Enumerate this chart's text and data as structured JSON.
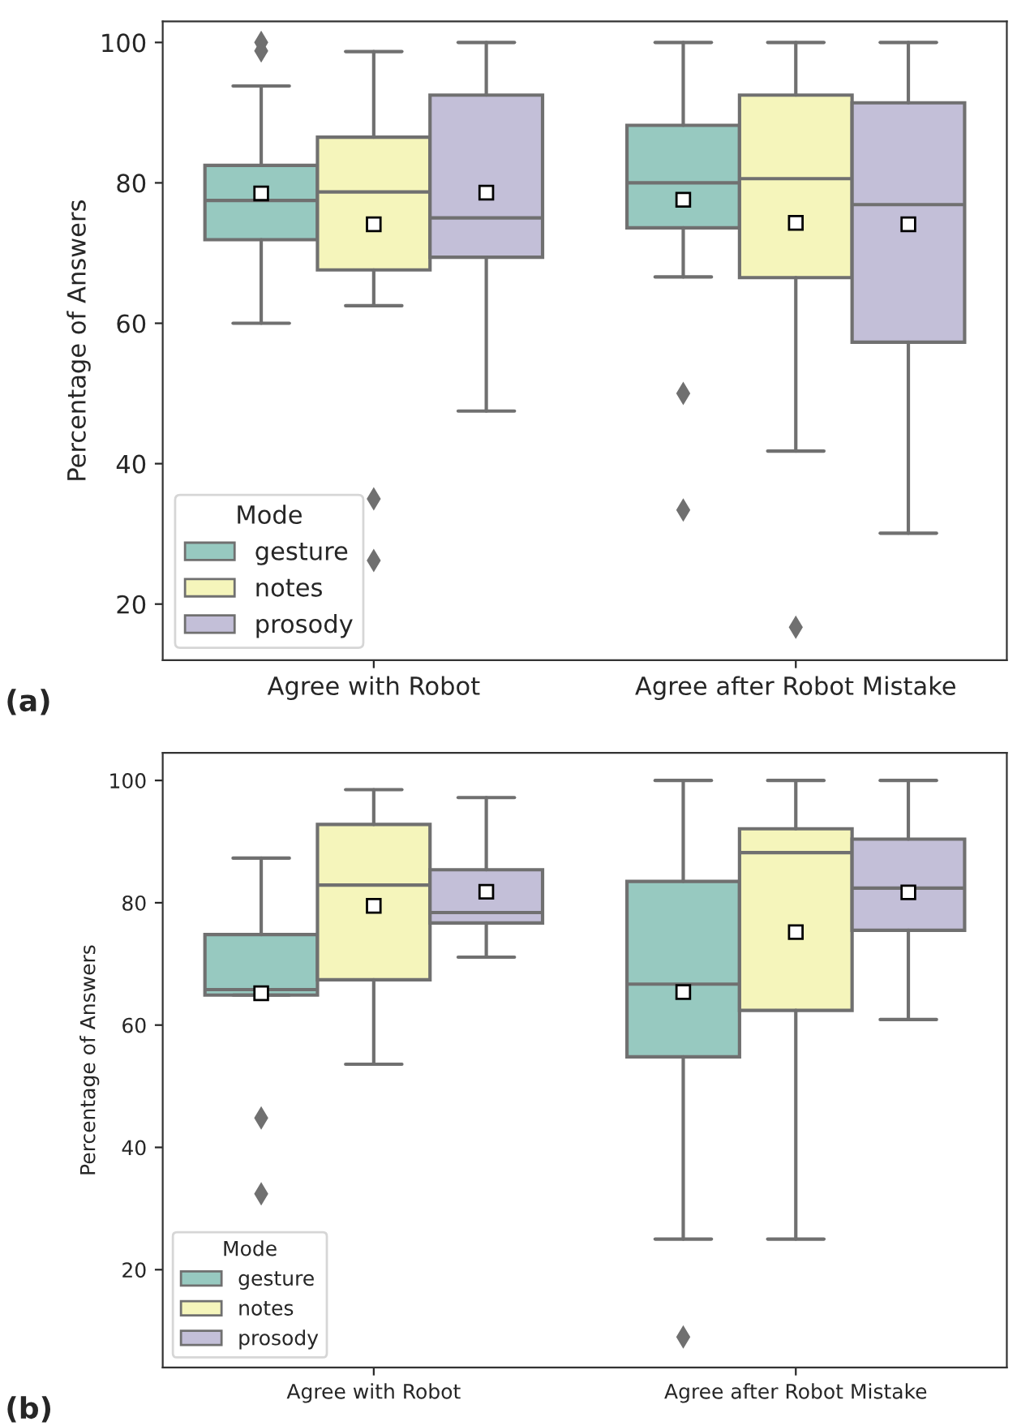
{
  "chart_data": [
    {
      "type": "box",
      "ylabel": "Percentage of Answers",
      "legend_title": "Mode",
      "legend": "bottom left",
      "grid": false,
      "annotations": [
        "(a)"
      ],
      "categories": [
        "Agree with Robot",
        "Agree after Robot Mistake"
      ],
      "ylim": [
        12,
        103
      ],
      "yticks": [
        20,
        40,
        60,
        80,
        100
      ],
      "series": [
        {
          "name": "gesture",
          "color": "#97c9c0",
          "boxes": [
            {
              "low": 60,
              "q1": 71.9,
              "median": 77.5,
              "q3": 82.5,
              "high": 93.8,
              "mean": 78.5,
              "outliers": [
                100,
                98.8
              ]
            },
            {
              "low": 66.6,
              "q1": 73.6,
              "median": 80,
              "q3": 88.2,
              "high": 100,
              "mean": 77.6,
              "outliers": [
                50,
                33.4
              ]
            }
          ]
        },
        {
          "name": "notes",
          "color": "#f5f5bb",
          "boxes": [
            {
              "low": 62.5,
              "q1": 67.6,
              "median": 78.7,
              "q3": 86.5,
              "high": 98.7,
              "mean": 74.1,
              "outliers": [
                35,
                26.2
              ]
            },
            {
              "low": 41.8,
              "q1": 66.5,
              "median": 80.6,
              "q3": 92.5,
              "high": 100,
              "mean": 74.3,
              "outliers": [
                16.7
              ]
            }
          ]
        },
        {
          "name": "prosody",
          "color": "#c3bfd8",
          "boxes": [
            {
              "low": 47.5,
              "q1": 69.4,
              "median": 75,
              "q3": 92.5,
              "high": 100,
              "mean": 78.6
            },
            {
              "low": 30.1,
              "q1": 57.3,
              "median": 76.9,
              "q3": 91.4,
              "high": 100,
              "mean": 74.1
            }
          ]
        }
      ]
    },
    {
      "type": "box",
      "ylabel": "Percentage of Answers",
      "legend_title": "Mode",
      "legend": "bottom left",
      "grid": false,
      "annotations": [
        "(b)"
      ],
      "categories": [
        "Agree with Robot",
        "Agree after Robot Mistake"
      ],
      "ylim": [
        4,
        104.5
      ],
      "yticks": [
        20,
        40,
        60,
        80,
        100
      ],
      "series": [
        {
          "name": "gesture",
          "color": "#97c9c0",
          "boxes": [
            {
              "low": 64.9,
              "q1": 64.9,
              "median": 65.8,
              "q3": 74.8,
              "high": 87.3,
              "mean": 65.2,
              "outliers": [
                44.8,
                32.4
              ]
            },
            {
              "low": 25,
              "q1": 54.8,
              "median": 66.7,
              "q3": 83.5,
              "high": 100,
              "mean": 65.4,
              "outliers": [
                9
              ]
            }
          ]
        },
        {
          "name": "notes",
          "color": "#f5f5bb",
          "boxes": [
            {
              "low": 53.6,
              "q1": 67.4,
              "median": 82.9,
              "q3": 92.8,
              "high": 98.5,
              "mean": 79.5
            },
            {
              "low": 25,
              "q1": 62.4,
              "median": 88.2,
              "q3": 92.1,
              "high": 100,
              "mean": 75.2
            }
          ]
        },
        {
          "name": "prosody",
          "color": "#c3bfd8",
          "boxes": [
            {
              "low": 71.1,
              "q1": 76.7,
              "median": 78.4,
              "q3": 85.4,
              "high": 97.2,
              "mean": 81.8
            },
            {
              "low": 60.9,
              "q1": 75.5,
              "median": 82.4,
              "q3": 90.4,
              "high": 100,
              "mean": 81.7
            }
          ]
        }
      ]
    }
  ]
}
